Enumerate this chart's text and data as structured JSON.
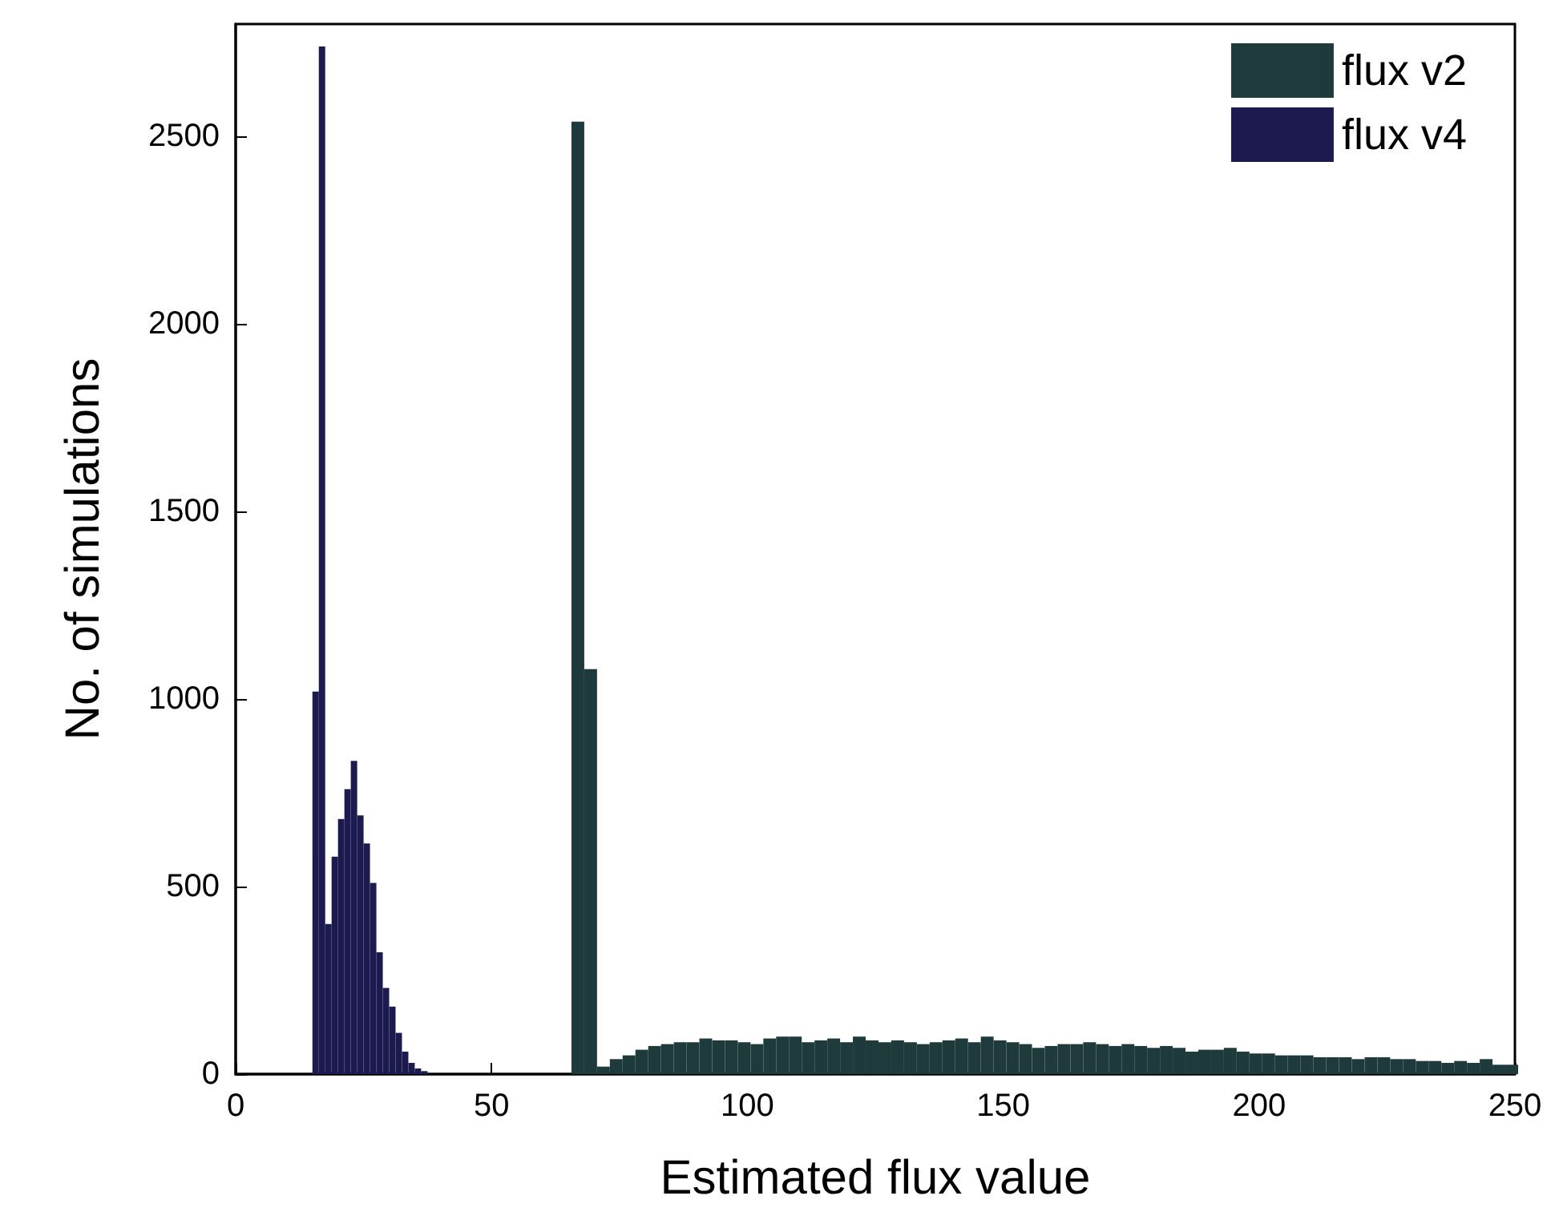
{
  "chart_data": {
    "type": "bar",
    "xlabel": "Estimated flux value",
    "ylabel": "No. of simulations",
    "xlim": [
      0,
      250
    ],
    "xticks": [
      0,
      50,
      100,
      150,
      200,
      250
    ],
    "ylim": [
      0,
      2800
    ],
    "yticks": [
      0,
      500,
      1000,
      1500,
      2000,
      2500
    ],
    "grid": false,
    "legend": "top right",
    "series": [
      {
        "name": "flux v2",
        "color": "#1e3a3a",
        "x": [
          66.25,
          68.75,
          71.25,
          73.75,
          76.25,
          78.75,
          81.25,
          83.75,
          86.25,
          88.75,
          91.25,
          93.75,
          96.25,
          98.75,
          101.25,
          103.75,
          106.25,
          108.75,
          111.25,
          113.75,
          116.25,
          118.75,
          121.25,
          123.75,
          126.25,
          128.75,
          131.25,
          133.75,
          136.25,
          138.75,
          141.25,
          143.75,
          146.25,
          148.75,
          151.25,
          153.75,
          156.25,
          158.75,
          161.25,
          163.75,
          166.25,
          168.75,
          171.25,
          173.75,
          176.25,
          178.75,
          181.25,
          183.75,
          186.25,
          188.75,
          191.25,
          193.75,
          196.25,
          198.75,
          201.25,
          203.75,
          206.25,
          208.75,
          211.25,
          213.75,
          216.25,
          218.75,
          221.25,
          223.75,
          226.25,
          228.75,
          231.25,
          233.75,
          236.25,
          238.75,
          241.25,
          243.75,
          246.25,
          248.75
        ],
        "values": [
          2540,
          1080,
          20,
          40,
          50,
          65,
          75,
          80,
          85,
          85,
          95,
          90,
          90,
          85,
          80,
          95,
          100,
          100,
          85,
          90,
          95,
          85,
          100,
          90,
          85,
          90,
          85,
          80,
          85,
          90,
          95,
          85,
          100,
          90,
          85,
          80,
          70,
          75,
          80,
          80,
          85,
          80,
          75,
          80,
          75,
          70,
          75,
          70,
          60,
          65,
          65,
          70,
          60,
          55,
          55,
          50,
          50,
          50,
          45,
          45,
          45,
          40,
          45,
          45,
          40,
          40,
          35,
          35,
          30,
          35,
          30,
          40,
          25,
          25
        ]
      },
      {
        "name": "flux v4",
        "color": "#1c1a4e",
        "x": [
          15.625,
          16.875,
          18.125,
          19.375,
          20.625,
          21.875,
          23.125,
          24.375,
          25.625,
          26.875,
          28.125,
          29.375,
          30.625,
          31.875,
          33.125,
          34.375,
          35.625,
          36.875
        ],
        "values": [
          1020,
          2740,
          400,
          580,
          680,
          760,
          835,
          690,
          615,
          510,
          325,
          230,
          180,
          110,
          60,
          30,
          15,
          8
        ]
      }
    ]
  }
}
